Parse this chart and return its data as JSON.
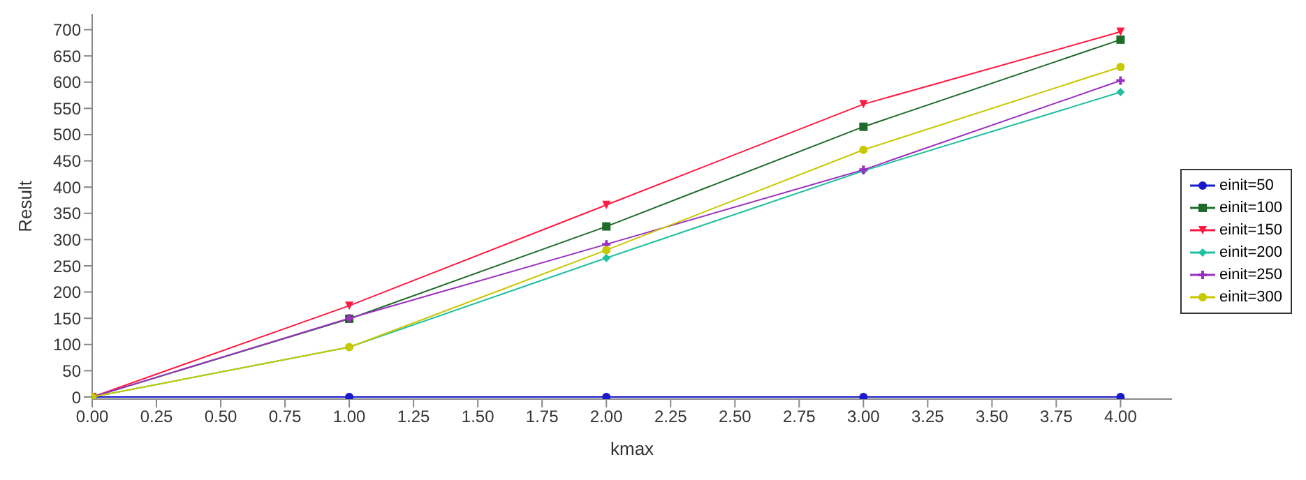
{
  "chart_data": {
    "type": "line",
    "xlabel": "kmax",
    "ylabel": "Result",
    "x": [
      0,
      1,
      2,
      3,
      4
    ],
    "series": [
      {
        "name": "einit=50",
        "color": "#1a1acc",
        "marker": "circle",
        "values": [
          0,
          0,
          0,
          0,
          0
        ]
      },
      {
        "name": "einit=100",
        "color": "#1e6b2a",
        "marker": "square",
        "values": [
          0,
          149,
          325,
          515,
          681
        ]
      },
      {
        "name": "einit=150",
        "color": "#ff1a40",
        "marker": "triangle",
        "values": [
          0,
          174,
          366,
          558,
          696
        ]
      },
      {
        "name": "einit=200",
        "color": "#20c0a0",
        "marker": "diamond",
        "values": [
          0,
          95,
          265,
          431,
          581
        ]
      },
      {
        "name": "einit=250",
        "color": "#9a30c0",
        "marker": "cross",
        "values": [
          0,
          150,
          291,
          433,
          603
        ]
      },
      {
        "name": "einit=300",
        "color": "#c8c800",
        "marker": "circle",
        "values": [
          0,
          95,
          280,
          471,
          629
        ]
      }
    ],
    "xlim": [
      0,
      4.2
    ],
    "xticks": [
      {
        "value": 0,
        "label": "0.00"
      },
      {
        "value": 0.25,
        "label": "0.25"
      },
      {
        "value": 0.5,
        "label": "0.50"
      },
      {
        "value": 0.75,
        "label": "0.75"
      },
      {
        "value": 1,
        "label": "1.00"
      },
      {
        "value": 1.25,
        "label": "1.25"
      },
      {
        "value": 1.5,
        "label": "1.50"
      },
      {
        "value": 1.75,
        "label": "1.75"
      },
      {
        "value": 2,
        "label": "2.00"
      },
      {
        "value": 2.25,
        "label": "2.25"
      },
      {
        "value": 2.5,
        "label": "2.50"
      },
      {
        "value": 2.75,
        "label": "2.75"
      },
      {
        "value": 3,
        "label": "3.00"
      },
      {
        "value": 3.25,
        "label": "3.25"
      },
      {
        "value": 3.5,
        "label": "3.50"
      },
      {
        "value": 3.75,
        "label": "3.75"
      },
      {
        "value": 4,
        "label": "4.00"
      }
    ],
    "ylim": [
      -4,
      730
    ],
    "yticks": [
      0,
      50,
      100,
      150,
      200,
      250,
      300,
      350,
      400,
      450,
      500,
      550,
      600,
      650,
      700
    ],
    "grid": false,
    "legend": "right",
    "line_style": "solid"
  }
}
